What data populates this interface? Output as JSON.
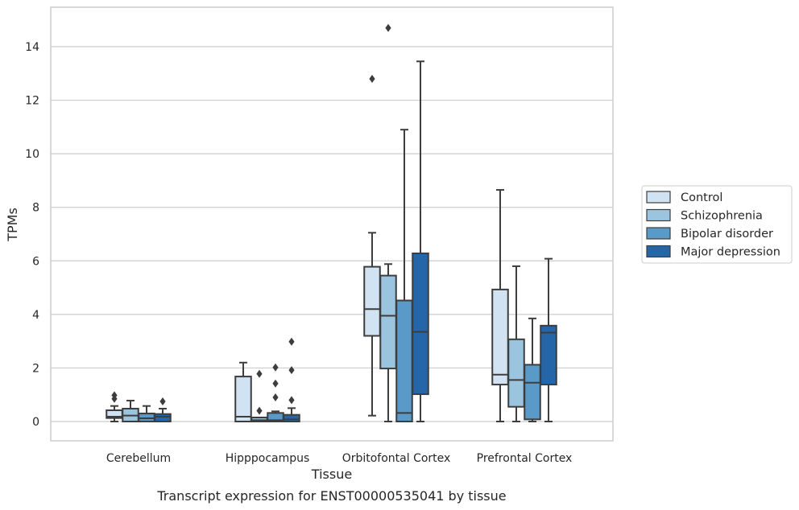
{
  "chart_data": {
    "type": "box",
    "title": "",
    "caption": "Transcript expression for ENST00000535041 by tissue",
    "xlabel": "Tissue",
    "ylabel": "TPMs",
    "ylim": [
      -0.7,
      15.3
    ],
    "yticks": [
      0,
      2,
      4,
      6,
      8,
      10,
      12,
      14
    ],
    "grid": "horizontal",
    "legend_position": "right",
    "categories": [
      "Cerebellum",
      "Hipppocampus",
      "Orbitofontal Cortex",
      "Prefrontal Cortex"
    ],
    "series": [
      {
        "name": "Control",
        "color": "#d1e2f2",
        "boxes": [
          {
            "whislo": 0.0,
            "q1": 0.13,
            "med": 0.18,
            "q3": 0.42,
            "whishi": 0.58,
            "fliers": [
              0.85,
              0.98
            ]
          },
          {
            "whislo": 0.0,
            "q1": 0.0,
            "med": 0.18,
            "q3": 1.68,
            "whishi": 2.2,
            "fliers": []
          },
          {
            "whislo": 0.22,
            "q1": 3.2,
            "med": 4.2,
            "q3": 5.78,
            "whishi": 7.05,
            "fliers": [
              12.8
            ]
          },
          {
            "whislo": 0.0,
            "q1": 1.38,
            "med": 1.75,
            "q3": 4.93,
            "whishi": 8.65,
            "fliers": []
          }
        ]
      },
      {
        "name": "Schizophrenia",
        "color": "#9bc4de",
        "boxes": [
          {
            "whislo": 0.0,
            "q1": 0.0,
            "med": 0.22,
            "q3": 0.48,
            "whishi": 0.78,
            "fliers": []
          },
          {
            "whislo": 0.0,
            "q1": 0.0,
            "med": 0.05,
            "q3": 0.15,
            "whishi": 0.15,
            "fliers": [
              0.4,
              1.78
            ]
          },
          {
            "whislo": 0.0,
            "q1": 1.98,
            "med": 3.95,
            "q3": 5.45,
            "whishi": 5.88,
            "fliers": [
              14.7
            ]
          },
          {
            "whislo": 0.0,
            "q1": 0.55,
            "med": 1.55,
            "q3": 3.07,
            "whishi": 5.8,
            "fliers": []
          }
        ]
      },
      {
        "name": "Bipolar disorder",
        "color": "#5a9ac9",
        "boxes": [
          {
            "whislo": 0.0,
            "q1": 0.0,
            "med": 0.12,
            "q3": 0.3,
            "whishi": 0.58,
            "fliers": []
          },
          {
            "whislo": 0.0,
            "q1": 0.0,
            "med": 0.05,
            "q3": 0.32,
            "whishi": 0.38,
            "fliers": [
              0.9,
              1.42,
              2.02
            ]
          },
          {
            "whislo": 0.0,
            "q1": 0.0,
            "med": 0.32,
            "q3": 4.52,
            "whishi": 10.9,
            "fliers": []
          },
          {
            "whislo": 0.0,
            "q1": 0.08,
            "med": 1.45,
            "q3": 2.12,
            "whishi": 3.85,
            "fliers": []
          }
        ]
      },
      {
        "name": "Major depression",
        "color": "#2466a8",
        "boxes": [
          {
            "whislo": 0.0,
            "q1": 0.0,
            "med": 0.18,
            "q3": 0.28,
            "whishi": 0.48,
            "fliers": [
              0.75
            ]
          },
          {
            "whislo": 0.0,
            "q1": 0.0,
            "med": 0.08,
            "q3": 0.25,
            "whishi": 0.5,
            "fliers": [
              0.8,
              1.92,
              2.98
            ]
          },
          {
            "whislo": 0.0,
            "q1": 1.02,
            "med": 3.35,
            "q3": 6.28,
            "whishi": 13.45,
            "fliers": []
          },
          {
            "whislo": 0.0,
            "q1": 1.38,
            "med": 3.32,
            "q3": 3.58,
            "whishi": 6.08,
            "fliers": []
          }
        ]
      }
    ]
  }
}
